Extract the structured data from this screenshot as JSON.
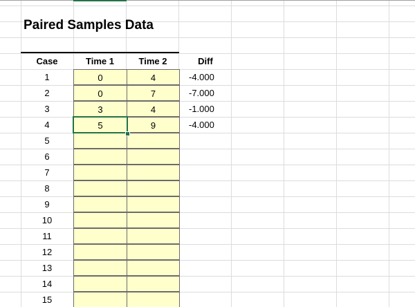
{
  "title": "Paired Samples Data",
  "table": {
    "headers": [
      "Case",
      "Time 1",
      "Time 2",
      "Diff"
    ],
    "rows": [
      [
        "1",
        "0",
        "4",
        "-4.000"
      ],
      [
        "2",
        "0",
        "7",
        "-7.000"
      ],
      [
        "3",
        "3",
        "4",
        "-1.000"
      ],
      [
        "4",
        "5",
        "9",
        "-4.000"
      ],
      [
        "5"
      ],
      [
        "6"
      ],
      [
        "7"
      ],
      [
        "8"
      ],
      [
        "9"
      ],
      [
        "10"
      ],
      [
        "11"
      ],
      [
        "12"
      ],
      [
        "13"
      ],
      [
        "14"
      ],
      [
        "15"
      ]
    ]
  }
}
